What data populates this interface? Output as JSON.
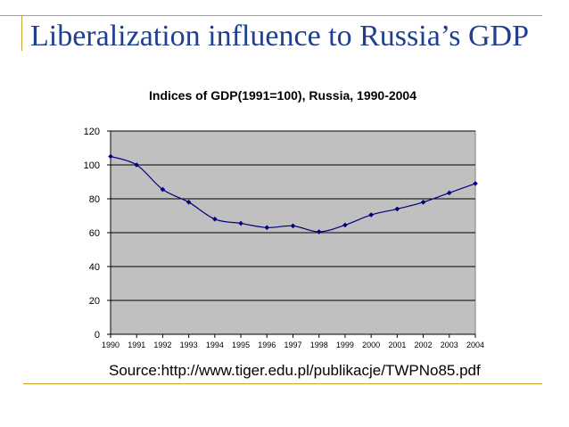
{
  "slide": {
    "title": "Liberalization influence to Russia’s GDP",
    "source": "Source:http://www.tiger.edu.pl/publikacje/TWPNo85.pdf"
  },
  "colors": {
    "title": "#1f3f8f",
    "rule": "#c8a42a",
    "plot_bg": "#c0c0c0",
    "series": "#000080"
  },
  "chart_data": {
    "type": "line",
    "title": "Indices of GDP(1991=100), Russia, 1990-2004",
    "xlabel": "",
    "ylabel": "",
    "ylim": [
      0,
      120
    ],
    "yticks": [
      0,
      20,
      40,
      60,
      80,
      100,
      120
    ],
    "grid": true,
    "legend": "none",
    "x": [
      "1990",
      "1991",
      "1992",
      "1993",
      "1994",
      "1995",
      "1996",
      "1997",
      "1998",
      "1999",
      "2000",
      "2001",
      "2002",
      "2003",
      "2004"
    ],
    "series": [
      {
        "name": "GDP index",
        "values": [
          105,
          100,
          85.5,
          78,
          68,
          65.5,
          63,
          64,
          60.5,
          64.5,
          70.5,
          74,
          78,
          83.5,
          89
        ]
      }
    ]
  }
}
